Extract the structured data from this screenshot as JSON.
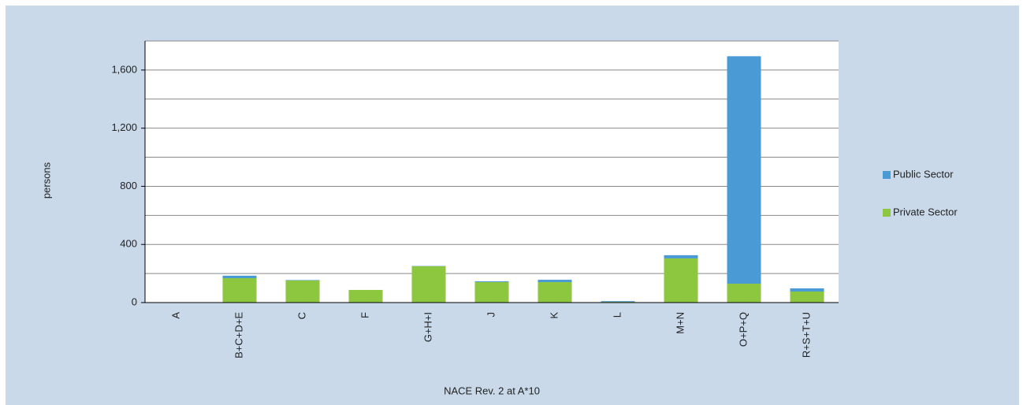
{
  "chart_data": {
    "type": "stacked_bar",
    "y_label": "persons",
    "x_label": "NACE Rev. 2 at A*10",
    "categories": [
      "A",
      "B+C+D+E",
      "C",
      "F",
      "G+H+I",
      "J",
      "K",
      "L",
      "M+N",
      "O+P+Q",
      "R+S+T+U"
    ],
    "series": [
      {
        "name": "Private Sector",
        "color": "#8dc63f",
        "values": [
          2,
          168,
          152,
          87,
          250,
          141,
          141,
          5,
          304,
          130,
          76
        ]
      },
      {
        "name": "Public Sector",
        "color": "#4a9ad6",
        "values": [
          0,
          17,
          3,
          0,
          2,
          5,
          16,
          5,
          22,
          1565,
          22
        ]
      }
    ],
    "ylim": [
      0,
      1800
    ],
    "yticks": [
      0,
      {
        "value": 400,
        "label": "400"
      },
      {
        "value": 800,
        "label": "800"
      },
      {
        "value": 1200,
        "label": "1,200"
      },
      {
        "value": 1600,
        "label": "1,600"
      }
    ],
    "minor_yticks": [
      200,
      600,
      1000,
      1400,
      1800
    ],
    "grid": true,
    "legend": "right"
  }
}
